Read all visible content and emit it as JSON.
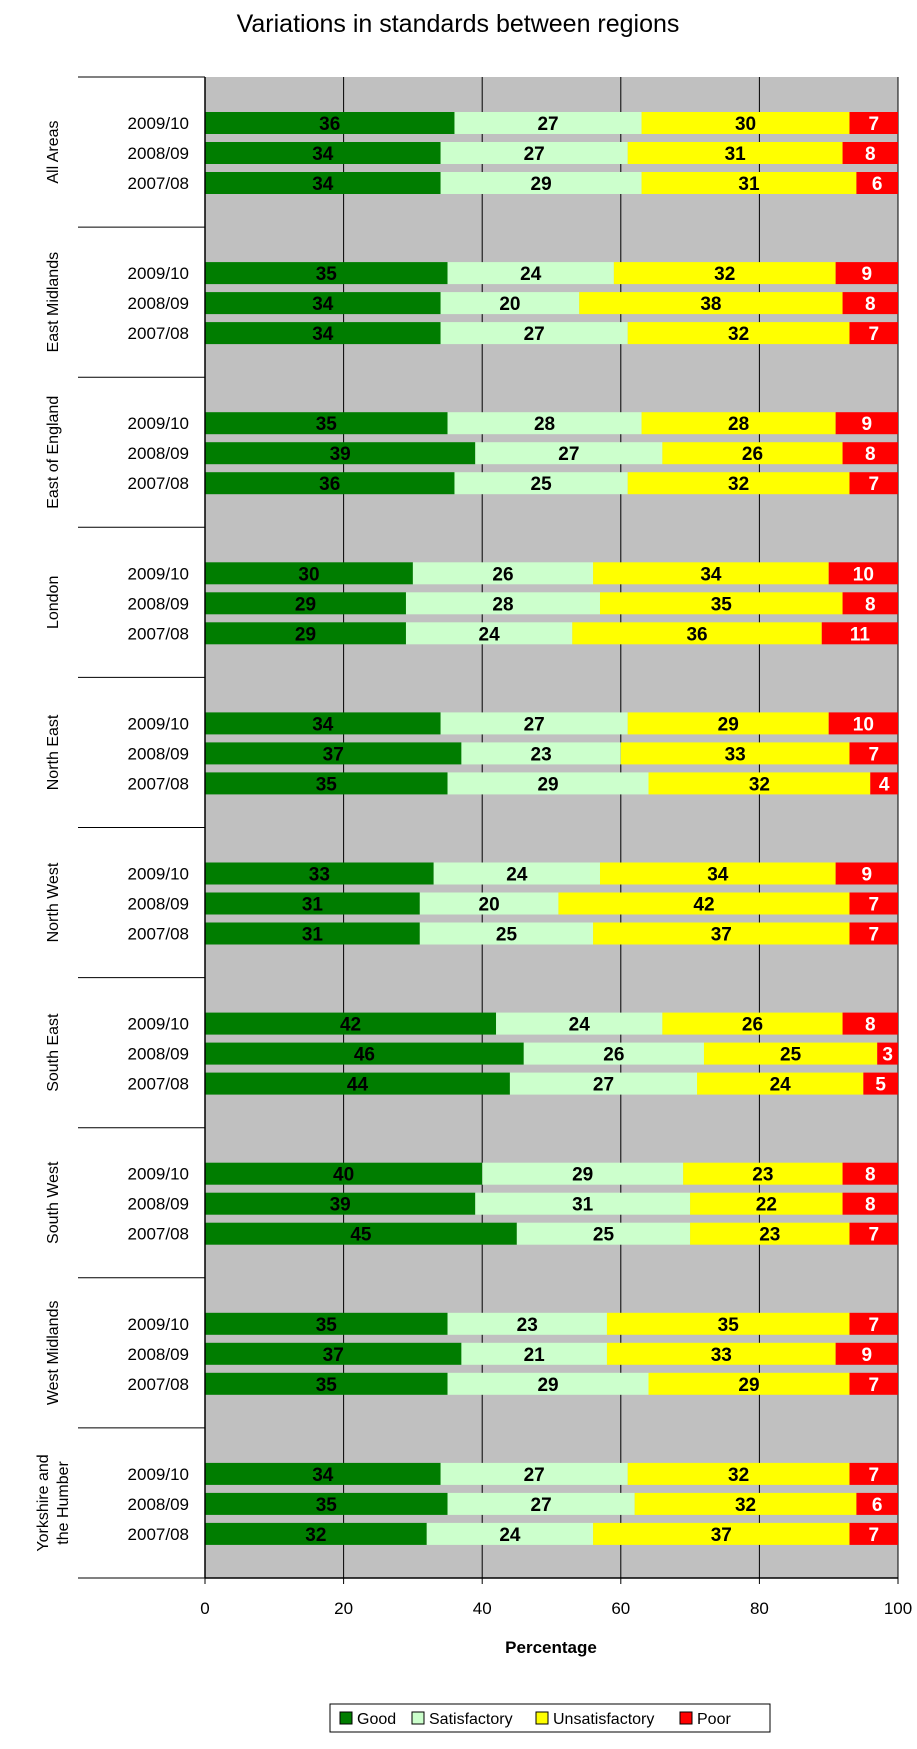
{
  "chart_data": {
    "type": "bar",
    "orientation": "horizontal",
    "stacked": true,
    "title": "Variations in standards between regions",
    "xlabel": "Percentage",
    "ylabel": "",
    "xlim": [
      0,
      100
    ],
    "xticks": [
      0,
      20,
      40,
      60,
      80,
      100
    ],
    "grid": true,
    "legend_position": "bottom",
    "series": [
      {
        "name": "Good",
        "color": "#007d00"
      },
      {
        "name": "Satisfactory",
        "color": "#ccffcc"
      },
      {
        "name": "Unsatisfactory",
        "color": "#ffff00"
      },
      {
        "name": "Poor",
        "color": "#ff0000"
      }
    ],
    "groups": [
      {
        "region": "All Areas",
        "rows": [
          {
            "year": "2009/10",
            "values": [
              36,
              27,
              30,
              7
            ]
          },
          {
            "year": "2008/09",
            "values": [
              34,
              27,
              31,
              8
            ]
          },
          {
            "year": "2007/08",
            "values": [
              34,
              29,
              31,
              6
            ]
          }
        ]
      },
      {
        "region": "East Midlands",
        "rows": [
          {
            "year": "2009/10",
            "values": [
              35,
              24,
              32,
              9
            ]
          },
          {
            "year": "2008/09",
            "values": [
              34,
              20,
              38,
              8
            ]
          },
          {
            "year": "2007/08",
            "values": [
              34,
              27,
              32,
              7
            ]
          }
        ]
      },
      {
        "region": "East of England",
        "rows": [
          {
            "year": "2009/10",
            "values": [
              35,
              28,
              28,
              9
            ]
          },
          {
            "year": "2008/09",
            "values": [
              39,
              27,
              26,
              8
            ]
          },
          {
            "year": "2007/08",
            "values": [
              36,
              25,
              32,
              7
            ]
          }
        ]
      },
      {
        "region": "London",
        "rows": [
          {
            "year": "2009/10",
            "values": [
              30,
              26,
              34,
              10
            ]
          },
          {
            "year": "2008/09",
            "values": [
              29,
              28,
              35,
              8
            ]
          },
          {
            "year": "2007/08",
            "values": [
              29,
              24,
              36,
              11
            ]
          }
        ]
      },
      {
        "region": "North East",
        "rows": [
          {
            "year": "2009/10",
            "values": [
              34,
              27,
              29,
              10
            ]
          },
          {
            "year": "2008/09",
            "values": [
              37,
              23,
              33,
              7
            ]
          },
          {
            "year": "2007/08",
            "values": [
              35,
              29,
              32,
              4
            ]
          }
        ]
      },
      {
        "region": "North West",
        "rows": [
          {
            "year": "2009/10",
            "values": [
              33,
              24,
              34,
              9
            ]
          },
          {
            "year": "2008/09",
            "values": [
              31,
              20,
              42,
              7
            ]
          },
          {
            "year": "2007/08",
            "values": [
              31,
              25,
              37,
              7
            ]
          }
        ]
      },
      {
        "region": "South East",
        "rows": [
          {
            "year": "2009/10",
            "values": [
              42,
              24,
              26,
              8
            ]
          },
          {
            "year": "2008/09",
            "values": [
              46,
              26,
              25,
              3
            ]
          },
          {
            "year": "2007/08",
            "values": [
              44,
              27,
              24,
              5
            ]
          }
        ]
      },
      {
        "region": "South West",
        "rows": [
          {
            "year": "2009/10",
            "values": [
              40,
              29,
              23,
              8
            ]
          },
          {
            "year": "2008/09",
            "values": [
              39,
              31,
              22,
              8
            ]
          },
          {
            "year": "2007/08",
            "values": [
              45,
              25,
              23,
              7
            ]
          }
        ]
      },
      {
        "region": "West Midlands",
        "rows": [
          {
            "year": "2009/10",
            "values": [
              35,
              23,
              35,
              7
            ]
          },
          {
            "year": "2008/09",
            "values": [
              37,
              21,
              33,
              9
            ]
          },
          {
            "year": "2007/08",
            "values": [
              35,
              29,
              29,
              7
            ]
          }
        ]
      },
      {
        "region": "Yorkshire and the Humber",
        "region_lines": [
          "Yorkshire and",
          "the Humber"
        ],
        "rows": [
          {
            "year": "2009/10",
            "values": [
              34,
              27,
              32,
              7
            ]
          },
          {
            "year": "2008/09",
            "values": [
              35,
              27,
              32,
              6
            ]
          },
          {
            "year": "2007/08",
            "values": [
              32,
              24,
              37,
              7
            ]
          }
        ]
      }
    ]
  }
}
